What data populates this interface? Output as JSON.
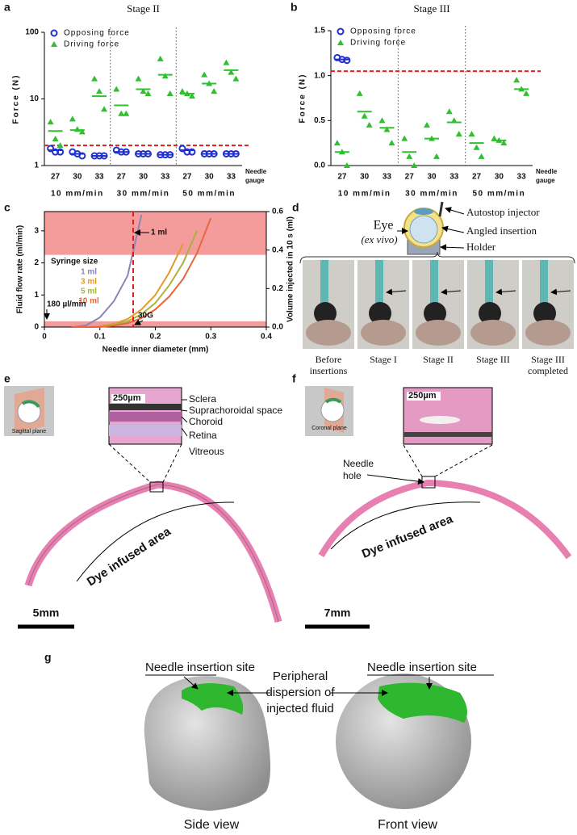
{
  "chart_data": [
    {
      "type": "scatter",
      "title": "Stage II",
      "y_label": "Force (N)",
      "x_label": [
        "Needle",
        "gauge"
      ],
      "log_scale": true,
      "ylim": [
        1,
        100
      ],
      "yticks": [
        1,
        10,
        100
      ],
      "categories": [
        "27",
        "30",
        "33",
        "27",
        "30",
        "33",
        "27",
        "30",
        "33"
      ],
      "groups": [
        "10 mm/min",
        "30 mm/min",
        "50 mm/min"
      ],
      "threshold": 2,
      "threshold_color": "#e02020",
      "series": [
        {
          "name": "Opposing force",
          "color": "#1f2fd0",
          "marker": "circle",
          "values": [
            [
              1.8,
              1.6,
              1.6
            ],
            [
              1.6,
              1.5,
              1.4
            ],
            [
              1.4,
              1.4,
              1.4
            ],
            [
              1.7,
              1.6,
              1.6
            ],
            [
              1.5,
              1.5,
              1.5
            ],
            [
              1.45,
              1.45,
              1.45
            ],
            [
              1.8,
              1.6,
              1.6
            ],
            [
              1.5,
              1.5,
              1.5
            ],
            [
              1.5,
              1.5,
              1.5
            ]
          ],
          "means": [
            1.7,
            1.5,
            1.4,
            1.6,
            1.5,
            1.45,
            1.7,
            1.5,
            1.5
          ]
        },
        {
          "name": "Driving force",
          "color": "#2fbf2f",
          "marker": "triangle",
          "values": [
            [
              4.5,
              2.5,
              2.0
            ],
            [
              5,
              3.5,
              3.2
            ],
            [
              20,
              13,
              7
            ],
            [
              14,
              6,
              6
            ],
            [
              20,
              13,
              12
            ],
            [
              40,
              22,
              12
            ],
            [
              13,
              12,
              11
            ],
            [
              23,
              17,
              13
            ],
            [
              35,
              25,
              20
            ]
          ],
          "means": [
            3.3,
            3.4,
            11,
            8,
            14,
            23,
            12,
            17,
            27
          ]
        }
      ]
    },
    {
      "type": "scatter",
      "title": "Stage III",
      "y_label": "Force (N)",
      "x_label": [
        "Needle",
        "gauge"
      ],
      "log_scale": false,
      "ylim": [
        0,
        1.5
      ],
      "yticks": [
        {
          "value": 0,
          "label": "0.0"
        },
        {
          "value": 0.5,
          "label": "0.5"
        },
        {
          "value": 1,
          "label": "1.0"
        },
        {
          "value": 1.5,
          "label": "1.5"
        }
      ],
      "categories": [
        "27",
        "30",
        "33",
        "27",
        "30",
        "33",
        "27",
        "30",
        "33"
      ],
      "groups": [
        "10 mm/min",
        "30 mm/min",
        "50 mm/min"
      ],
      "threshold": 1.05,
      "threshold_color": "#e02020",
      "series": [
        {
          "name": "Opposing force",
          "color": "#1f2fd0",
          "marker": "circle",
          "values": [
            [
              1.2,
              1.18,
              1.17
            ],
            null,
            null,
            null,
            null,
            null,
            null,
            null,
            null
          ],
          "means": [
            1.18,
            null,
            null,
            null,
            null,
            null,
            null,
            null,
            null
          ]
        },
        {
          "name": "Driving force",
          "color": "#2fbf2f",
          "marker": "triangle",
          "values": [
            [
              0.25,
              0.15,
              0.0
            ],
            [
              0.8,
              0.55,
              0.45
            ],
            [
              0.5,
              0.4,
              0.25
            ],
            [
              0.3,
              0.1,
              0.0
            ],
            [
              0.45,
              0.3,
              0.1
            ],
            [
              0.6,
              0.5,
              0.35
            ],
            [
              0.35,
              0.2,
              0.1
            ],
            [
              0.3,
              0.28,
              0.25
            ],
            [
              0.95,
              0.85,
              0.8
            ]
          ],
          "means": [
            0.15,
            0.6,
            0.42,
            0.15,
            0.3,
            0.48,
            0.25,
            0.28,
            0.85
          ]
        }
      ]
    },
    {
      "type": "line",
      "x_label": "Needle inner diameter (mm)",
      "y_label": "Fluid flow rate (ml/min)",
      "y2_label": "Volume injected in 10 s (ml)",
      "xlim": [
        0,
        0.4
      ],
      "xticks": [
        0,
        0.1,
        0.2,
        0.3,
        0.4
      ],
      "ylim": [
        0,
        3.6
      ],
      "yticks": [
        0,
        1,
        2,
        3
      ],
      "y2lim": [
        0,
        0.6
      ],
      "y2ticks": [
        {
          "value": 0,
          "label": "0.0"
        },
        0.2,
        0.4,
        0.6
      ],
      "bands": [
        [
          0,
          0.18
        ],
        [
          2.25,
          3.6
        ]
      ],
      "band_color": "#f28b8b",
      "vline": 0.16,
      "vline_color": "#e02020",
      "legend_title": "Syringe size",
      "annotations": [
        "1 ml",
        "180 µl/min",
        "30G"
      ],
      "x": [
        0.05,
        0.075,
        0.1,
        0.125,
        0.15,
        0.175,
        0.2,
        0.225,
        0.25,
        0.275,
        0.3
      ],
      "series": [
        {
          "name": "1 ml",
          "color": "#8a84b8",
          "values": [
            0,
            0.05,
            0.3,
            0.8,
            1.6,
            3.5,
            null,
            null,
            null,
            null,
            null
          ]
        },
        {
          "name": "3 ml",
          "color": "#e39a2c",
          "values": [
            0,
            0,
            0.02,
            0.1,
            0.25,
            0.55,
            1.0,
            1.7,
            2.6,
            null,
            null
          ]
        },
        {
          "name": "5 ml",
          "color": "#a9b23a",
          "values": [
            0,
            0,
            0.01,
            0.07,
            0.18,
            0.4,
            0.75,
            1.3,
            2.0,
            3.0,
            null
          ]
        },
        {
          "name": "10 ml",
          "color": "#e8663c",
          "values": [
            0,
            0,
            0,
            0.04,
            0.12,
            0.28,
            0.55,
            0.95,
            1.5,
            2.3,
            3.4
          ]
        }
      ]
    }
  ],
  "panel_labels": [
    "a",
    "b",
    "c",
    "d",
    "e",
    "f",
    "g"
  ],
  "panel_d": {
    "eye": "Eye",
    "ex_vivo": "(ex vivo)",
    "injector": "Autostop injector",
    "angled": "Angled insertion",
    "holder": "Holder",
    "captions": [
      [
        "Before",
        "insertions"
      ],
      [
        "Stage I"
      ],
      [
        "Stage II"
      ],
      [
        "Stage III"
      ],
      [
        "Stage III",
        "completed"
      ]
    ]
  },
  "panel_e": {
    "plane": "Sagittal plane",
    "scale_inset": "250µm",
    "layers": [
      "Sclera",
      "Suprachoroidal space",
      "Choroid",
      "Retina",
      "Vitreous"
    ],
    "dye": "Dye infused area",
    "scale": "5mm"
  },
  "panel_f": {
    "plane": "Coronal plane",
    "scale_inset": "250µm",
    "needle_hole": [
      "Needle",
      "hole"
    ],
    "dye": "Dye infused area",
    "scale": "7mm"
  },
  "panel_g": {
    "site": "Needle insertion site",
    "dispersion": [
      "Peripheral",
      "dispersion of",
      "injected fluid"
    ],
    "views": [
      "Side view",
      "Front view"
    ]
  }
}
